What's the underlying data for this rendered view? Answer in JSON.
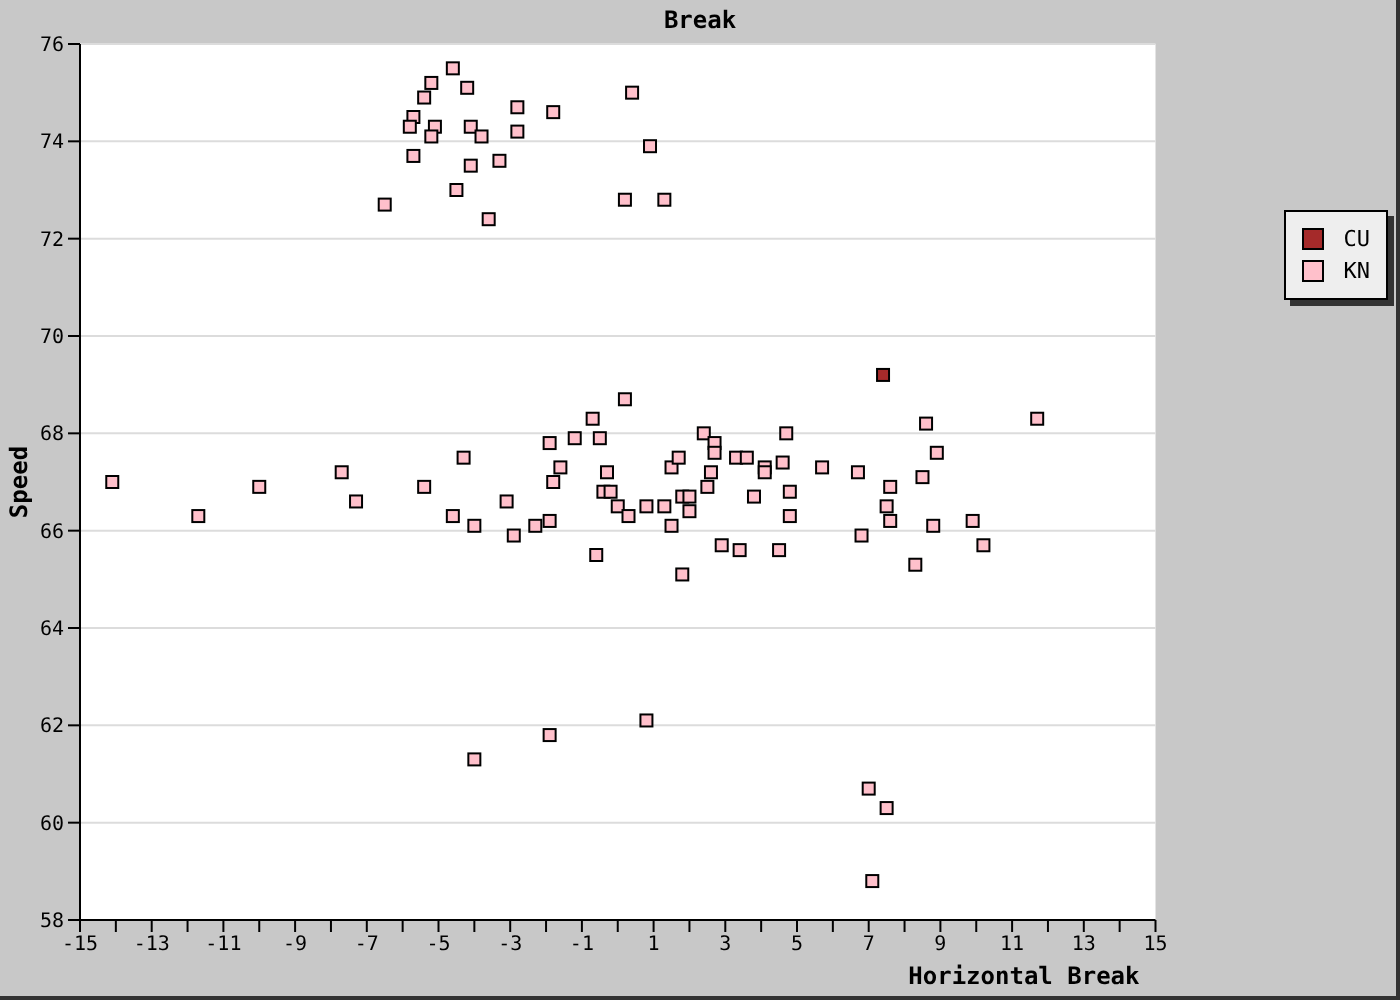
{
  "chart_data": {
    "type": "scatter",
    "title": "Break",
    "xlabel": "Horizontal Break",
    "ylabel": "Speed",
    "xlim": [
      -15,
      15
    ],
    "xticks": [
      -15,
      {
        "value": -14,
        "label": null
      },
      -13,
      {
        "value": -12,
        "label": null
      },
      -11,
      {
        "value": -10,
        "label": null
      },
      -9,
      {
        "value": -8,
        "label": null
      },
      -7,
      {
        "value": -6,
        "label": null
      },
      -5,
      {
        "value": -4,
        "label": null
      },
      -3,
      {
        "value": -2,
        "label": null
      },
      -1,
      {
        "value": 0,
        "label": null
      },
      1,
      {
        "value": 2,
        "label": null
      },
      3,
      {
        "value": 4,
        "label": null
      },
      5,
      {
        "value": 6,
        "label": null
      },
      7,
      {
        "value": 8,
        "label": null
      },
      9,
      {
        "value": 10,
        "label": null
      },
      11,
      {
        "value": 12,
        "label": null
      },
      13,
      {
        "value": 14,
        "label": null
      },
      15
    ],
    "ylim": [
      58,
      76
    ],
    "yticks": [
      58,
      60,
      62,
      64,
      66,
      68,
      70,
      72,
      74,
      76
    ],
    "grid": "y",
    "legend": "right",
    "marker": "square",
    "series": [
      {
        "name": "CU",
        "color": "#a52a2a",
        "x": [
          7.4
        ],
        "values": [
          69.2
        ]
      },
      {
        "name": "KN",
        "color": "#ffc0cb",
        "x": [
          -4.6,
          -5.2,
          -4.2,
          -5.4,
          -2.8,
          -1.8,
          -5.7,
          -5.8,
          -5.1,
          -4.1,
          -5.2,
          -3.8,
          -2.8,
          -5.7,
          -4.1,
          -3.3,
          -4.5,
          -6.5,
          -3.6,
          0.4,
          0.9,
          0.2,
          1.3,
          -14.1,
          -11.7,
          -10.0,
          -7.7,
          -7.3,
          -5.4,
          -4.6,
          -4.3,
          -4.0,
          -3.1,
          -2.9,
          -2.3,
          -1.9,
          -1.8,
          -1.9,
          -1.6,
          -1.2,
          -0.7,
          -0.5,
          0.2,
          -0.3,
          -0.4,
          -0.2,
          0.0,
          0.3,
          -0.6,
          0.8,
          1.3,
          1.5,
          1.5,
          1.7,
          1.8,
          2.0,
          2.0,
          1.8,
          2.4,
          2.7,
          2.7,
          2.6,
          2.5,
          2.9,
          3.3,
          3.6,
          3.4,
          3.8,
          4.1,
          4.1,
          4.7,
          4.6,
          4.8,
          4.8,
          4.5,
          5.7,
          6.7,
          6.8,
          8.6,
          11.7,
          8.9,
          7.6,
          8.5,
          7.5,
          7.6,
          8.8,
          9.9,
          10.2,
          8.3,
          -4.0,
          -1.9,
          0.8,
          7.0,
          7.5,
          7.1
        ],
        "values": [
          75.5,
          75.2,
          75.1,
          74.9,
          74.7,
          74.6,
          74.5,
          74.3,
          74.3,
          74.3,
          74.1,
          74.1,
          74.2,
          73.7,
          73.5,
          73.6,
          73.0,
          72.7,
          72.4,
          75.0,
          73.9,
          72.8,
          72.8,
          67.0,
          66.3,
          66.9,
          67.2,
          66.6,
          66.9,
          66.3,
          67.5,
          66.1,
          66.6,
          65.9,
          66.1,
          67.8,
          67.0,
          66.2,
          67.3,
          67.9,
          68.3,
          67.9,
          68.7,
          67.2,
          66.8,
          66.8,
          66.5,
          66.3,
          65.5,
          66.5,
          66.5,
          66.1,
          67.3,
          67.5,
          66.7,
          66.7,
          66.4,
          65.1,
          68.0,
          67.8,
          67.6,
          67.2,
          66.9,
          65.7,
          67.5,
          67.5,
          65.6,
          66.7,
          67.3,
          67.2,
          68.0,
          67.4,
          66.8,
          66.3,
          65.6,
          67.3,
          67.2,
          65.9,
          68.2,
          68.3,
          67.6,
          66.9,
          67.1,
          66.5,
          66.2,
          66.1,
          66.2,
          65.7,
          65.3,
          61.3,
          61.8,
          62.1,
          60.7,
          60.3,
          58.8
        ]
      }
    ]
  }
}
